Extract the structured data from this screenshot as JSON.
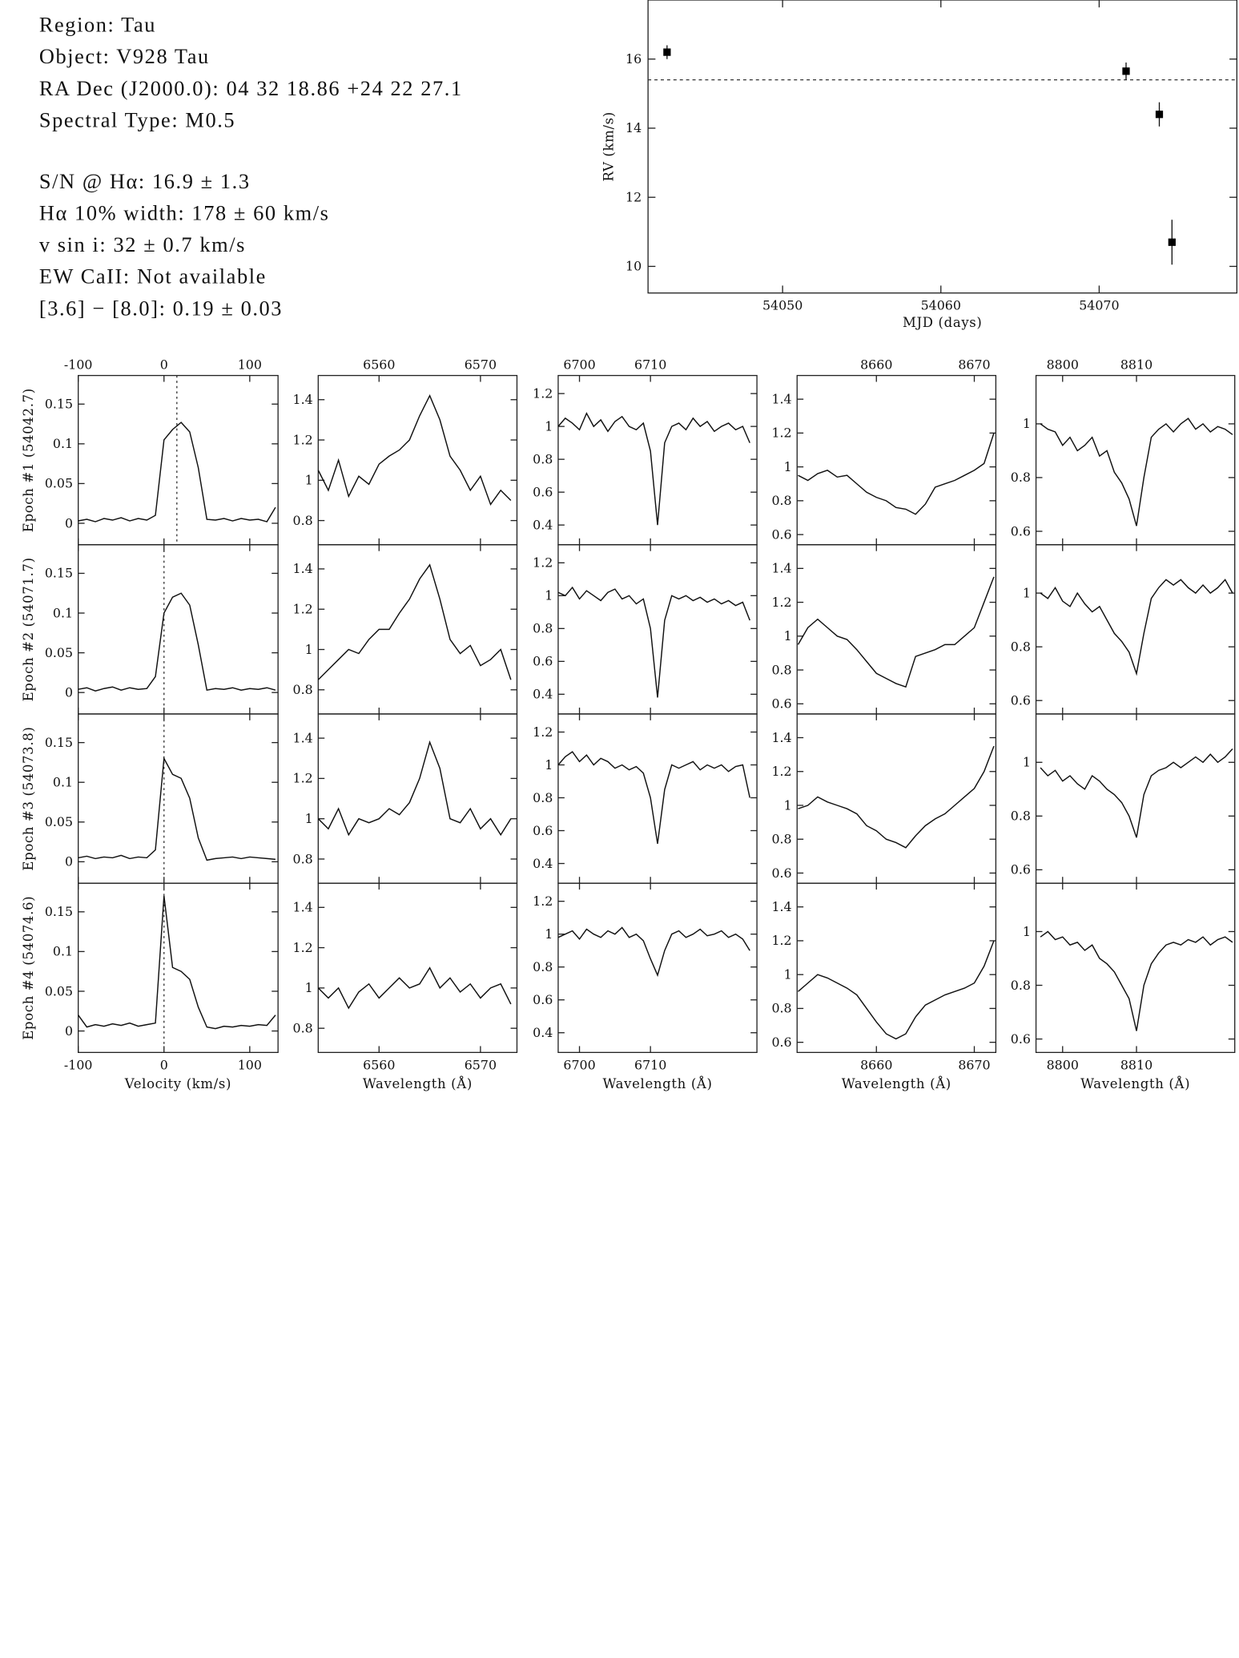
{
  "info": {
    "lines": [
      "Region: Tau",
      "Object: V928 Tau",
      "RA Dec (J2000.0): 04 32 18.86 +24 22 27.1",
      "Spectral Type: M0.5",
      "S/N @ Hα: 16.9 ± 1.3",
      "Hα 10% width: 178 ± 60 km/s",
      "v sin i: 32 ± 0.7 km/s",
      "EW CaII: Not available",
      "[3.6] − [8.0]: 0.19 ± 0.03"
    ]
  },
  "chart_data": [
    {
      "type": "scatter",
      "x_label": "MJD (days)",
      "y_label": "RV (km/s)",
      "x": [
        54042.7,
        54071.7,
        54073.8,
        54074.6
      ],
      "values": [
        16.2,
        15.65,
        14.4,
        10.7
      ],
      "errors": [
        0.2,
        0.25,
        0.35,
        0.65
      ],
      "reference_line": 15.4,
      "xlim": [
        54041.5,
        54078.7
      ],
      "ylim": [
        9.23,
        17.71
      ],
      "xticks": [
        54050,
        54060,
        54070
      ],
      "yticks": [
        10,
        12,
        14,
        16
      ],
      "color": "#000000"
    },
    {
      "type": "line-grid",
      "rows": [
        {
          "label": "Epoch #1 (54042.7)",
          "vline": 15
        },
        {
          "label": "Epoch #2 (54071.7)",
          "vline": 0
        },
        {
          "label": "Epoch #3 (54073.8)",
          "vline": 0
        },
        {
          "label": "Epoch #4 (54074.6)",
          "vline": 0
        }
      ],
      "columns": [
        {
          "x_label": "Velocity (km/s)",
          "xlim": [
            -100,
            133
          ],
          "ylim": [
            -0.027,
            0.186
          ],
          "xticks": [
            -100,
            0,
            100
          ],
          "yticks": [
            0,
            0.05,
            0.1,
            0.15
          ],
          "x": [
            -100,
            -90,
            -80,
            -70,
            -60,
            -50,
            -40,
            -30,
            -20,
            -10,
            0,
            10,
            20,
            30,
            40,
            50,
            60,
            70,
            80,
            90,
            100,
            110,
            120,
            130
          ]
        },
        {
          "x_label": "Wavelength (Å)",
          "xlim": [
            6554,
            6573.6
          ],
          "ylim": [
            0.68,
            1.52
          ],
          "xticks": [
            6560,
            6570
          ],
          "yticks": [
            0.8,
            1,
            1.2,
            1.4
          ],
          "x": [
            6554,
            6555,
            6556,
            6557,
            6558,
            6559,
            6560,
            6561,
            6562,
            6563,
            6564,
            6565,
            6566,
            6567,
            6568,
            6569,
            6570,
            6571,
            6572,
            6573
          ]
        },
        {
          "x_label": "Wavelength (Å)",
          "xlim": [
            6697,
            6725
          ],
          "ylim": [
            0.28,
            1.31
          ],
          "xticks": [
            6700,
            6710
          ],
          "yticks": [
            0.4,
            0.6,
            0.8,
            1,
            1.2
          ],
          "x": [
            6697,
            6698,
            6699,
            6700,
            6701,
            6702,
            6703,
            6704,
            6705,
            6706,
            6707,
            6708,
            6709,
            6710,
            6711,
            6712,
            6713,
            6714,
            6715,
            6716,
            6717,
            6718,
            6719,
            6720,
            6721,
            6722,
            6723,
            6724
          ]
        },
        {
          "x_label": "Wavelength (Å)",
          "xlim": [
            8651.9,
            8672.2
          ],
          "ylim": [
            0.54,
            1.54
          ],
          "xticks": [
            8660,
            8670
          ],
          "yticks": [
            0.6,
            0.8,
            1,
            1.2,
            1.4
          ],
          "x": [
            8652,
            8653,
            8654,
            8655,
            8656,
            8657,
            8658,
            8659,
            8660,
            8661,
            8662,
            8663,
            8664,
            8665,
            8666,
            8667,
            8668,
            8669,
            8670,
            8671,
            8672
          ]
        },
        {
          "x_label": "Wavelength (Å)",
          "xlim": [
            8796.4,
            8823.3
          ],
          "ylim": [
            0.55,
            1.18
          ],
          "xticks": [
            8800,
            8810
          ],
          "yticks": [
            0.6,
            0.8,
            1
          ],
          "x": [
            8797,
            8798,
            8799,
            8800,
            8801,
            8802,
            8803,
            8804,
            8805,
            8806,
            8807,
            8808,
            8809,
            8810,
            8811,
            8812,
            8813,
            8814,
            8815,
            8816,
            8817,
            8818,
            8819,
            8820,
            8821,
            8822,
            8823
          ]
        }
      ],
      "panels": [
        [
          {
            "values": [
              0.003,
              0.005,
              0.002,
              0.006,
              0.004,
              0.007,
              0.003,
              0.006,
              0.004,
              0.01,
              0.105,
              0.118,
              0.127,
              0.115,
              0.07,
              0.005,
              0.004,
              0.006,
              0.003,
              0.006,
              0.004,
              0.005,
              0.002,
              0.02
            ]
          },
          {
            "values": [
              1.05,
              0.95,
              1.1,
              0.92,
              1.02,
              0.98,
              1.08,
              1.12,
              1.15,
              1.2,
              1.32,
              1.42,
              1.3,
              1.12,
              1.05,
              0.95,
              1.02,
              0.88,
              0.95,
              0.9
            ]
          },
          {
            "values": [
              1.0,
              1.05,
              1.02,
              0.98,
              1.08,
              1.0,
              1.04,
              0.97,
              1.03,
              1.06,
              1.0,
              0.98,
              1.02,
              0.85,
              0.4,
              0.9,
              1.0,
              1.02,
              0.98,
              1.05,
              1.0,
              1.03,
              0.97,
              1.0,
              1.02,
              0.98,
              1.0,
              0.9
            ]
          },
          {
            "values": [
              0.95,
              0.92,
              0.96,
              0.98,
              0.94,
              0.95,
              0.9,
              0.85,
              0.82,
              0.8,
              0.76,
              0.75,
              0.72,
              0.78,
              0.88,
              0.9,
              0.92,
              0.95,
              0.98,
              1.02,
              1.2
            ]
          },
          {
            "values": [
              1.0,
              0.98,
              0.97,
              0.92,
              0.95,
              0.9,
              0.92,
              0.95,
              0.88,
              0.9,
              0.82,
              0.78,
              0.72,
              0.62,
              0.8,
              0.95,
              0.98,
              1.0,
              0.97,
              1.0,
              1.02,
              0.98,
              1.0,
              0.97,
              0.99,
              0.98,
              0.96
            ]
          }
        ],
        [
          {
            "values": [
              0.004,
              0.006,
              0.002,
              0.005,
              0.007,
              0.003,
              0.006,
              0.004,
              0.005,
              0.02,
              0.1,
              0.12,
              0.125,
              0.11,
              0.06,
              0.003,
              0.005,
              0.004,
              0.006,
              0.003,
              0.005,
              0.004,
              0.006,
              0.003
            ]
          },
          {
            "values": [
              0.85,
              0.9,
              0.95,
              1.0,
              0.98,
              1.05,
              1.1,
              1.1,
              1.18,
              1.25,
              1.35,
              1.42,
              1.25,
              1.05,
              0.98,
              1.02,
              0.92,
              0.95,
              1.0,
              0.85
            ]
          },
          {
            "values": [
              1.02,
              1.0,
              1.05,
              0.98,
              1.03,
              1.0,
              0.97,
              1.02,
              1.04,
              0.98,
              1.0,
              0.95,
              0.98,
              0.8,
              0.38,
              0.85,
              1.0,
              0.98,
              1.0,
              0.97,
              0.99,
              0.96,
              0.98,
              0.95,
              0.97,
              0.94,
              0.96,
              0.85
            ]
          },
          {
            "values": [
              0.95,
              1.05,
              1.1,
              1.05,
              1.0,
              0.98,
              0.92,
              0.85,
              0.78,
              0.75,
              0.72,
              0.7,
              0.88,
              0.9,
              0.92,
              0.95,
              0.95,
              1.0,
              1.05,
              1.2,
              1.35
            ]
          },
          {
            "values": [
              1.0,
              0.98,
              1.02,
              0.97,
              0.95,
              1.0,
              0.96,
              0.93,
              0.95,
              0.9,
              0.85,
              0.82,
              0.78,
              0.7,
              0.85,
              0.98,
              1.02,
              1.05,
              1.03,
              1.05,
              1.02,
              1.0,
              1.03,
              1.0,
              1.02,
              1.05,
              1.0
            ]
          }
        ],
        [
          {
            "values": [
              0.005,
              0.007,
              0.004,
              0.006,
              0.005,
              0.008,
              0.004,
              0.006,
              0.005,
              0.015,
              0.13,
              0.11,
              0.105,
              0.08,
              0.03,
              0.002,
              0.004,
              0.005,
              0.006,
              0.004,
              0.006,
              0.005,
              0.004,
              0.003
            ]
          },
          {
            "values": [
              1.0,
              0.95,
              1.05,
              0.92,
              1.0,
              0.98,
              1.0,
              1.05,
              1.02,
              1.08,
              1.2,
              1.38,
              1.25,
              1.0,
              0.98,
              1.05,
              0.95,
              1.0,
              0.92,
              1.0
            ]
          },
          {
            "values": [
              1.0,
              1.05,
              1.08,
              1.02,
              1.06,
              1.0,
              1.04,
              1.02,
              0.98,
              1.0,
              0.97,
              0.99,
              0.95,
              0.8,
              0.52,
              0.85,
              1.0,
              0.98,
              1.0,
              1.02,
              0.97,
              1.0,
              0.98,
              1.0,
              0.96,
              0.99,
              1.0,
              0.8
            ]
          },
          {
            "values": [
              0.98,
              1.0,
              1.05,
              1.02,
              1.0,
              0.98,
              0.95,
              0.88,
              0.85,
              0.8,
              0.78,
              0.75,
              0.82,
              0.88,
              0.92,
              0.95,
              1.0,
              1.05,
              1.1,
              1.2,
              1.35
            ]
          },
          {
            "values": [
              0.98,
              0.95,
              0.97,
              0.93,
              0.95,
              0.92,
              0.9,
              0.95,
              0.93,
              0.9,
              0.88,
              0.85,
              0.8,
              0.72,
              0.88,
              0.95,
              0.97,
              0.98,
              1.0,
              0.98,
              1.0,
              1.02,
              1.0,
              1.03,
              1.0,
              1.02,
              1.05
            ]
          }
        ],
        [
          {
            "values": [
              0.02,
              0.005,
              0.008,
              0.006,
              0.009,
              0.007,
              0.01,
              0.006,
              0.008,
              0.01,
              0.17,
              0.08,
              0.075,
              0.065,
              0.03,
              0.005,
              0.003,
              0.006,
              0.005,
              0.007,
              0.006,
              0.008,
              0.007,
              0.02
            ]
          },
          {
            "values": [
              1.0,
              0.95,
              1.0,
              0.9,
              0.98,
              1.02,
              0.95,
              1.0,
              1.05,
              1.0,
              1.02,
              1.1,
              1.0,
              1.05,
              0.98,
              1.02,
              0.95,
              1.0,
              1.02,
              0.92
            ]
          },
          {
            "values": [
              0.98,
              1.0,
              1.02,
              0.97,
              1.03,
              1.0,
              0.98,
              1.02,
              1.0,
              1.04,
              0.98,
              1.0,
              0.96,
              0.85,
              0.75,
              0.9,
              1.0,
              1.02,
              0.98,
              1.0,
              1.03,
              0.99,
              1.0,
              1.02,
              0.98,
              1.0,
              0.97,
              0.9
            ]
          },
          {
            "values": [
              0.9,
              0.95,
              1.0,
              0.98,
              0.95,
              0.92,
              0.88,
              0.8,
              0.72,
              0.65,
              0.62,
              0.65,
              0.75,
              0.82,
              0.85,
              0.88,
              0.9,
              0.92,
              0.95,
              1.05,
              1.2
            ]
          },
          {
            "values": [
              0.98,
              1.0,
              0.97,
              0.98,
              0.95,
              0.96,
              0.93,
              0.95,
              0.9,
              0.88,
              0.85,
              0.8,
              0.75,
              0.63,
              0.8,
              0.88,
              0.92,
              0.95,
              0.96,
              0.95,
              0.97,
              0.96,
              0.98,
              0.95,
              0.97,
              0.98,
              0.96
            ]
          }
        ]
      ]
    }
  ]
}
